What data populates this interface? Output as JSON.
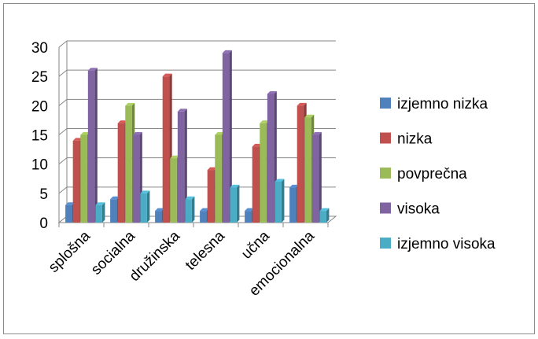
{
  "chart_data": {
    "type": "bar",
    "title": "",
    "xlabel": "",
    "ylabel": "",
    "ylim": [
      0,
      30
    ],
    "yticks": [
      0,
      5,
      10,
      15,
      20,
      25,
      30
    ],
    "grid": true,
    "legend_position": "right",
    "style": "3d-clustered-column",
    "categories": [
      "splošna",
      "socialna",
      "družinska",
      "telesna",
      "učna",
      "emocionalna"
    ],
    "series": [
      {
        "name": "izjemno nizka",
        "color": "#4f81bd",
        "values": [
          3,
          4,
          2,
          2,
          2,
          6
        ]
      },
      {
        "name": "nizka",
        "color": "#c0504d",
        "values": [
          14,
          17,
          25,
          9,
          13,
          20
        ]
      },
      {
        "name": "povprečna",
        "color": "#9bbb59",
        "values": [
          15,
          20,
          11,
          15,
          17,
          18
        ]
      },
      {
        "name": "visoka",
        "color": "#8064a2",
        "values": [
          26,
          15,
          19,
          29,
          22,
          15
        ]
      },
      {
        "name": "izjemno visoka",
        "color": "#4bacc6",
        "values": [
          3,
          5,
          4,
          6,
          7,
          2
        ]
      }
    ]
  }
}
